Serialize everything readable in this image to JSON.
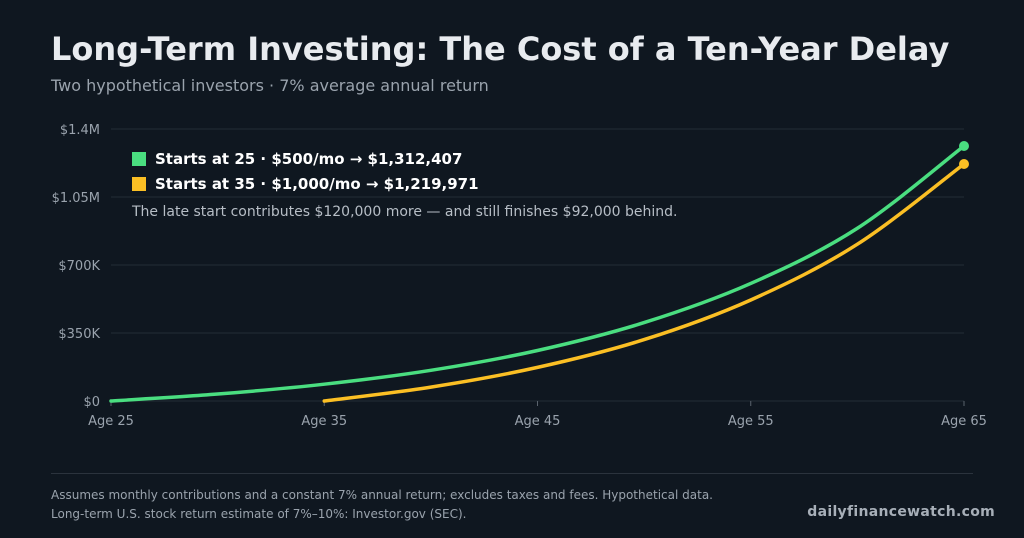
{
  "header": {
    "title": "Long-Term Investing: The Cost of a Ten-Year Delay",
    "subtitle": "Two hypothetical investors · 7% average annual return"
  },
  "legend": {
    "items": [
      {
        "label": "Starts at 25 · $500/mo  →  $1,312,407",
        "color": "#4ade80"
      },
      {
        "label": "Starts at 35 · $1,000/mo  →  $1,219,971",
        "color": "#fbbf24"
      }
    ],
    "note": "The late start contributes $120,000 more — and still finishes $92,000 behind."
  },
  "chart_data": {
    "type": "line",
    "x_tick_labels": [
      "Age 25",
      "Age 35",
      "Age 45",
      "Age 55",
      "Age 65"
    ],
    "x_ticks": [
      25,
      35,
      45,
      55,
      65
    ],
    "y_tick_labels": [
      "$0",
      "$350K",
      "$700K",
      "$1.05M",
      "$1.4M"
    ],
    "y_ticks": [
      0,
      350000,
      700000,
      1050000,
      1400000
    ],
    "xlim": [
      25,
      65
    ],
    "ylim": [
      0,
      1400000
    ],
    "grid": true,
    "legend_position": "top-left",
    "series": [
      {
        "name": "Starts at 25 · $500/mo",
        "color": "#4ade80",
        "x": [
          25,
          30,
          35,
          40,
          45,
          50,
          55,
          60,
          65
        ],
        "y": [
          0,
          35800,
          86500,
          157900,
          260000,
          403500,
          605000,
          889000,
          1312407
        ]
      },
      {
        "name": "Starts at 35 · $1,000/mo",
        "color": "#fbbf24",
        "x": [
          35,
          40,
          45,
          50,
          55,
          60,
          65
        ],
        "y": [
          0,
          71600,
          173000,
          316000,
          520000,
          807000,
          1219971
        ]
      }
    ]
  },
  "footer": {
    "line1": "Assumes monthly contributions and a constant 7% annual return; excludes taxes and fees. Hypothetical data.",
    "line2": "Long-term U.S. stock return estimate of 7%–10%: Investor.gov (SEC).",
    "brand": "dailyfinancewatch.com"
  }
}
